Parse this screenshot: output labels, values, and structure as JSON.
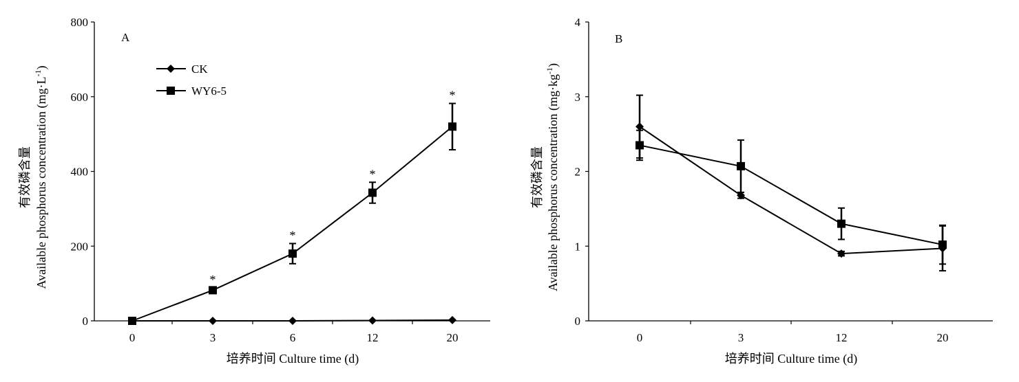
{
  "chart_data": [
    {
      "type": "line",
      "panel_label": "A",
      "categories": [
        "0",
        "3",
        "6",
        "12",
        "20"
      ],
      "xlabel": "培养时间 Culture time (d)",
      "ylabel": [
        "有效磷含量",
        "Available phosphorus concentration (mg·L"
      ],
      "ylabel_sup": "-1",
      "ylabel_close": ")",
      "ylim": [
        0,
        800
      ],
      "yticks": [
        "0",
        "200",
        "400",
        "600",
        "800"
      ],
      "legend_position": "top-left",
      "significance_marker": "*",
      "series": [
        {
          "name": "CK",
          "marker": "diamond",
          "values": [
            0,
            0,
            0,
            1,
            2
          ],
          "errors": [
            0,
            0,
            0,
            0,
            0
          ]
        },
        {
          "name": "WY6-5",
          "marker": "square",
          "values": [
            0,
            82,
            180,
            343,
            520
          ],
          "errors": [
            0,
            6,
            27,
            28,
            62
          ],
          "significant": [
            false,
            true,
            true,
            true,
            true
          ]
        }
      ]
    },
    {
      "type": "line",
      "panel_label": "B",
      "categories": [
        "0",
        "3",
        "12",
        "20"
      ],
      "xlabel": "培养时间 Culture time (d)",
      "ylabel": [
        "有效磷含量",
        "Available phosphorus concentration (mg·kg"
      ],
      "ylabel_sup": "-1",
      "ylabel_close": ")",
      "ylim": [
        0,
        4
      ],
      "yticks": [
        "0",
        "1",
        "2",
        "3",
        "4"
      ],
      "series": [
        {
          "name": "CK",
          "marker": "diamond",
          "values": [
            2.6,
            1.68,
            0.9,
            0.97
          ],
          "errors": [
            0.42,
            0.04,
            0.03,
            0.3
          ]
        },
        {
          "name": "WY6-5",
          "marker": "square",
          "values": [
            2.35,
            2.07,
            1.3,
            1.02
          ],
          "errors": [
            0.2,
            0.35,
            0.21,
            0.26
          ]
        }
      ]
    }
  ]
}
